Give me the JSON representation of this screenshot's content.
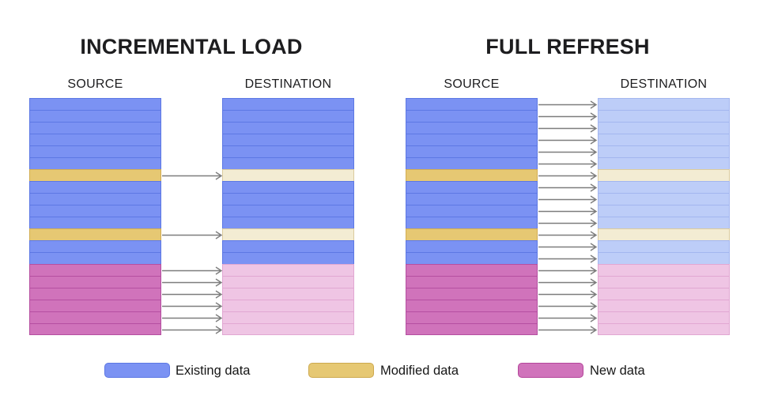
{
  "panels": [
    {
      "title": "INCREMENTAL LOAD",
      "source_label": "SOURCE",
      "destination_label": "DESTINATION",
      "mode": "incremental"
    },
    {
      "title": "FULL REFRESH",
      "source_label": "SOURCE",
      "destination_label": "DESTINATION",
      "mode": "full"
    }
  ],
  "row_types": [
    "existing",
    "existing",
    "existing",
    "existing",
    "existing",
    "existing",
    "modified",
    "existing",
    "existing",
    "existing",
    "existing",
    "modified",
    "existing",
    "existing",
    "new",
    "new",
    "new",
    "new",
    "new",
    "new"
  ],
  "colors": {
    "source": {
      "existing": {
        "fill": "#7b92f3",
        "line": "#5d78e4"
      },
      "modified": {
        "fill": "#e6c873",
        "line": "#d2ad52"
      },
      "new": {
        "fill": "#d073bb",
        "line": "#b54fa1"
      }
    },
    "faded": {
      "existing": {
        "fill": "#bdcdf8",
        "line": "#a3b6ef"
      },
      "modified": {
        "fill": "#f3ecd3",
        "line": "#dbcb9e"
      },
      "new": {
        "fill": "#efc5e4",
        "line": "#e1a7d2"
      }
    },
    "arrow": "#7d7d7d",
    "title_text": "#1d1d1f",
    "background": "#ffffff"
  },
  "legend": {
    "items": [
      {
        "label": "Existing data",
        "fill": "#7b92f3",
        "border": "#5d78e4"
      },
      {
        "label": "Modified data",
        "fill": "#e6c873",
        "border": "#cda94f"
      },
      {
        "label": "New data",
        "fill": "#d073bb",
        "border": "#b5469b"
      }
    ]
  }
}
